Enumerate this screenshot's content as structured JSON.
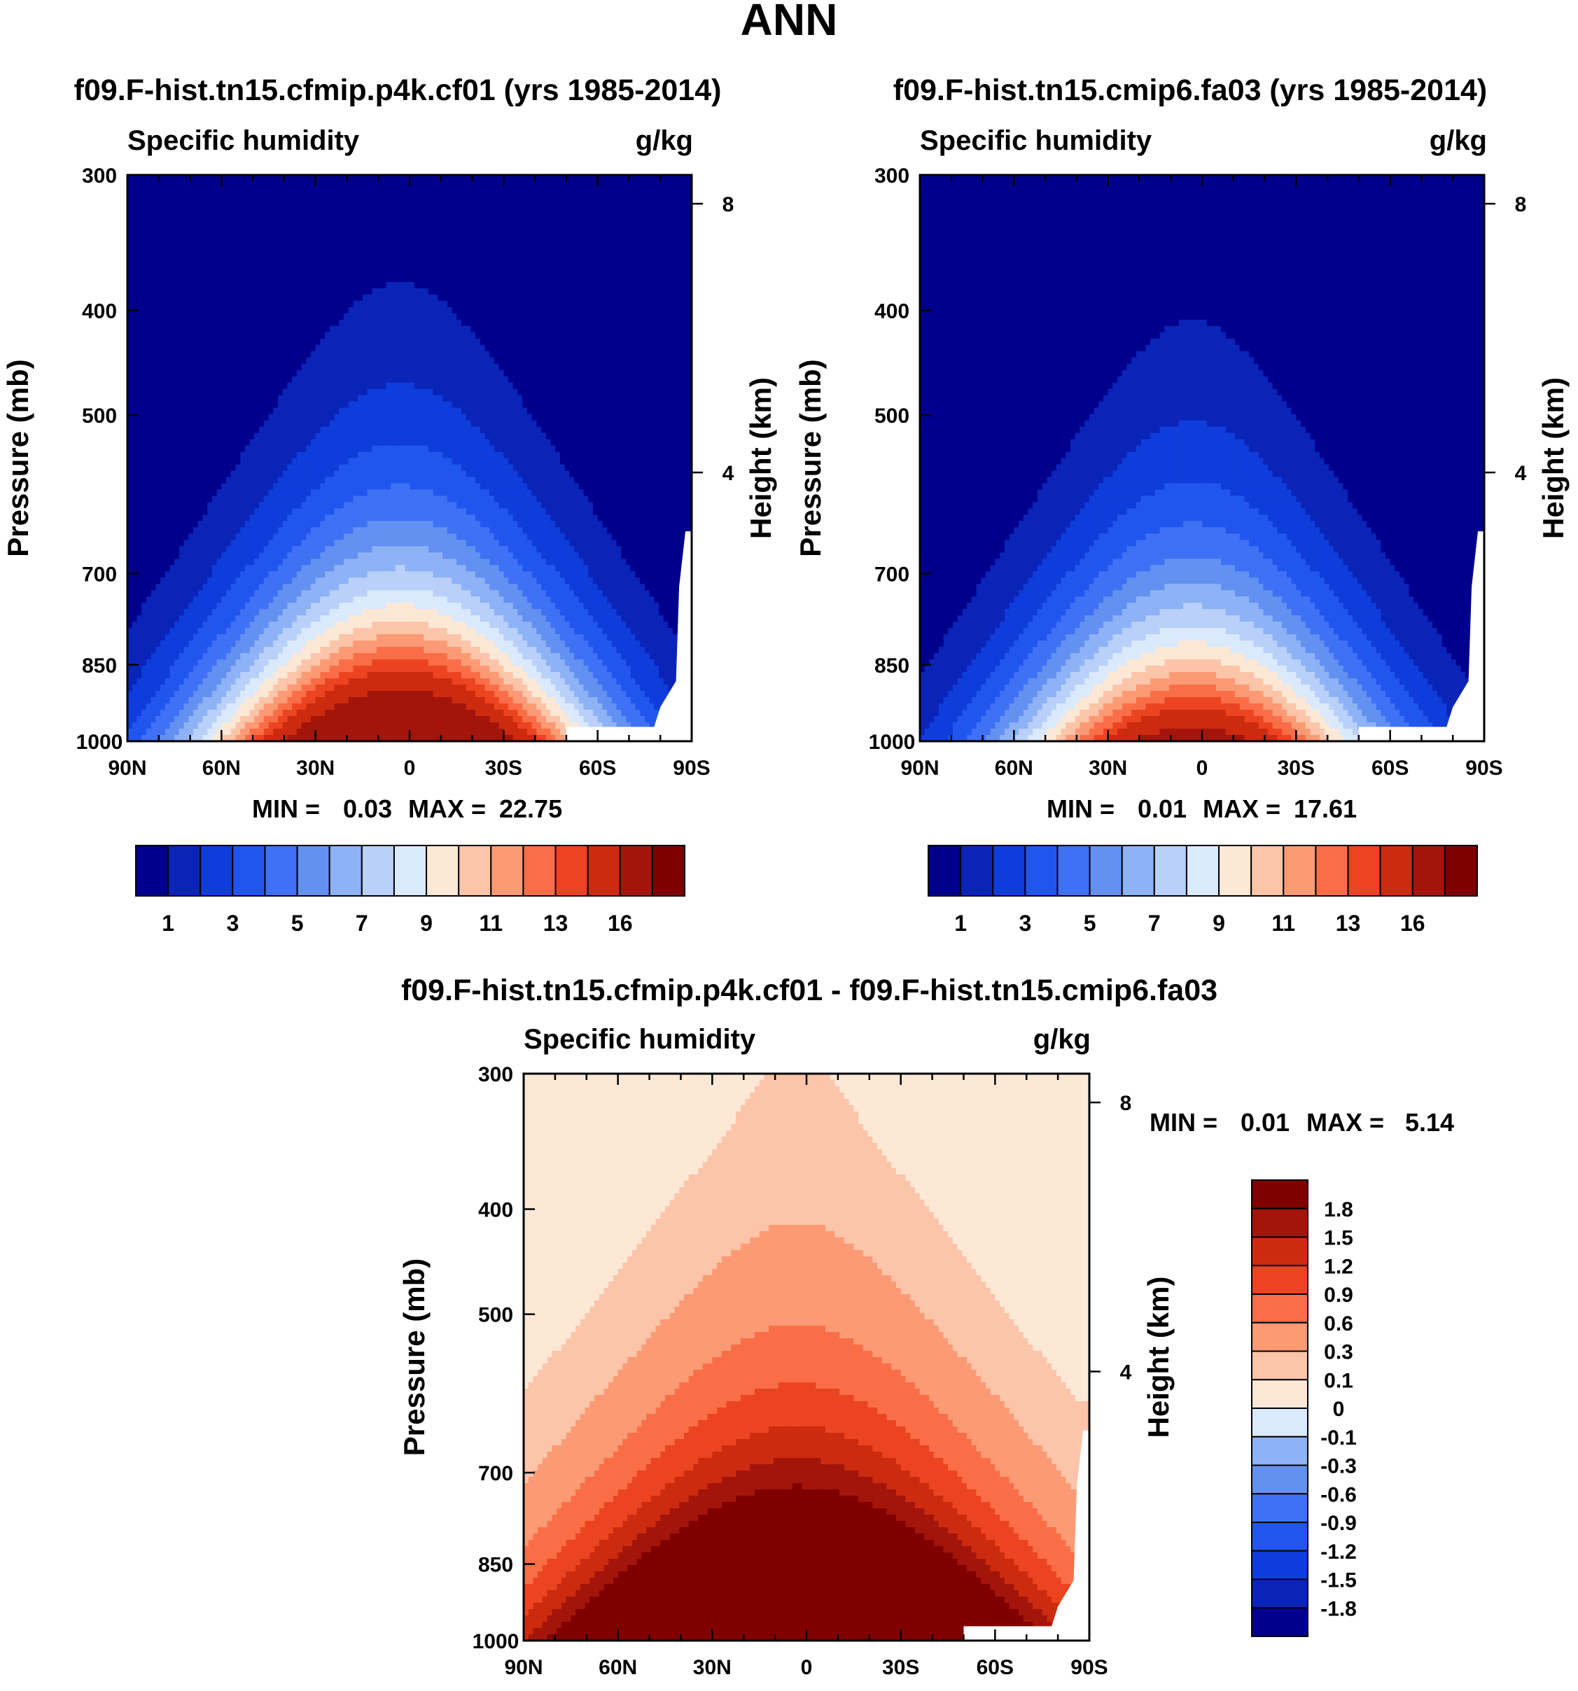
{
  "page_title": "ANN",
  "panels": [
    {
      "title": "f09.F-hist.tn15.cfmip.p4k.cf01 (yrs 1985-2014)",
      "left_label": "Specific humidity",
      "right_label": "g/kg",
      "min_label": "MIN =",
      "min_value": "0.03",
      "max_label": "MAX =",
      "max_value": "22.75"
    },
    {
      "title": "f09.F-hist.tn15.cmip6.fa03 (yrs 1985-2014)",
      "left_label": "Specific humidity",
      "right_label": "g/kg",
      "min_label": "MIN =",
      "min_value": "0.01",
      "max_label": "MAX =",
      "max_value": "17.61"
    },
    {
      "title": "f09.F-hist.tn15.cfmip.p4k.cf01 - f09.F-hist.tn15.cmip6.fa03",
      "left_label": "Specific humidity",
      "right_label": "g/kg",
      "min_label": "MIN =",
      "min_value": "0.01",
      "max_label": "MAX =",
      "max_value": "5.14"
    }
  ],
  "chart_data": [
    {
      "type": "heatmap",
      "title": "f09.F-hist.tn15.cfmip.p4k.cf01 (yrs 1985-2014)",
      "ylabel": "Pressure (mb)",
      "y2label": "Height (km)",
      "x_ticklabels": [
        "90N",
        "60N",
        "30N",
        "0",
        "30S",
        "60S",
        "90S"
      ],
      "y_ticklabels": [
        "300",
        "400",
        "500",
        "700",
        "850",
        "1000"
      ],
      "y2_ticklabels": [
        "8",
        "4"
      ],
      "x_range": [
        90,
        -90
      ],
      "y_range": [
        1000,
        300
      ],
      "peak_value": 22.75,
      "peak_half_width_deg": 23,
      "peak_top_hpa": 320,
      "colorbar_labels": [
        "1",
        "3",
        "5",
        "7",
        "9",
        "11",
        "13",
        "16"
      ],
      "levels": [
        1,
        2,
        3,
        4,
        5,
        6,
        7,
        8,
        9,
        10,
        11,
        12,
        13,
        14,
        16
      ],
      "colors": [
        "#00008c",
        "#0b24b8",
        "#0e3ddb",
        "#2156ee",
        "#3f71f5",
        "#6391f2",
        "#8eb2f6",
        "#b9d0fa",
        "#dbe9fd",
        "#fde8d6",
        "#fcc4a8",
        "#fb9a74",
        "#f96e47",
        "#ec4420",
        "#cc2b0f",
        "#a3150b",
        "#800000"
      ]
    },
    {
      "type": "heatmap",
      "title": "f09.F-hist.tn15.cmip6.fa03 (yrs 1985-2014)",
      "ylabel": "Pressure (mb)",
      "y2label": "Height (km)",
      "x_ticklabels": [
        "90N",
        "60N",
        "30N",
        "0",
        "30S",
        "60S",
        "90S"
      ],
      "y_ticklabels": [
        "300",
        "400",
        "500",
        "700",
        "850",
        "1000"
      ],
      "y2_ticklabels": [
        "8",
        "4"
      ],
      "x_range": [
        90,
        -90
      ],
      "y_range": [
        1000,
        300
      ],
      "peak_value": 17.61,
      "peak_half_width_deg": 21,
      "peak_top_hpa": 370,
      "colorbar_labels": [
        "1",
        "3",
        "5",
        "7",
        "9",
        "11",
        "13",
        "16"
      ],
      "levels": [
        1,
        2,
        3,
        4,
        5,
        6,
        7,
        8,
        9,
        10,
        11,
        12,
        13,
        14,
        16
      ],
      "colors": [
        "#00008c",
        "#0b24b8",
        "#0e3ddb",
        "#2156ee",
        "#3f71f5",
        "#6391f2",
        "#8eb2f6",
        "#b9d0fa",
        "#dbe9fd",
        "#fde8d6",
        "#fcc4a8",
        "#fb9a74",
        "#f96e47",
        "#ec4420",
        "#cc2b0f",
        "#a3150b",
        "#800000"
      ]
    },
    {
      "type": "heatmap",
      "title": "f09.F-hist.tn15.cfmip.p4k.cf01 - f09.F-hist.tn15.cmip6.fa03",
      "ylabel": "Pressure (mb)",
      "y2label": "Height (km)",
      "x_ticklabels": [
        "90N",
        "60N",
        "30N",
        "0",
        "30S",
        "60S",
        "90S"
      ],
      "y_ticklabels": [
        "300",
        "400",
        "500",
        "700",
        "850",
        "1000"
      ],
      "y2_ticklabels": [
        "8",
        "4"
      ],
      "x_range": [
        90,
        -90
      ],
      "y_range": [
        1000,
        300
      ],
      "peak_value": 5.14,
      "peak_half_width_deg": 32,
      "peak_top_hpa": 330,
      "colorbar_labels": [
        "1.8",
        "1.5",
        "1.2",
        "0.9",
        "0.6",
        "0.3",
        "0.1",
        "0",
        "-0.1",
        "-0.3",
        "-0.6",
        "-0.9",
        "-1.2",
        "-1.5",
        "-1.8"
      ],
      "levels": [
        -1.8,
        -1.5,
        -1.2,
        -0.9,
        -0.6,
        -0.3,
        -0.1,
        0,
        0.1,
        0.3,
        0.6,
        0.9,
        1.2,
        1.5,
        1.8
      ],
      "colors": [
        "#00008c",
        "#0b24b8",
        "#0e3ddb",
        "#2156ee",
        "#3f71f5",
        "#6391f2",
        "#8eb2f6",
        "#dbe9fd",
        "#fde8d6",
        "#fcc4a8",
        "#fb9a74",
        "#f96e47",
        "#ec4420",
        "#cc2b0f",
        "#a3150b",
        "#800000"
      ]
    }
  ]
}
